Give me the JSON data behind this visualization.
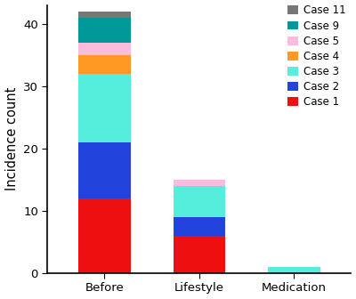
{
  "categories": [
    "Before",
    "Lifestyle",
    "Medication"
  ],
  "cases": [
    {
      "label": "Case 1",
      "color": "#EE1010",
      "values": [
        12,
        6,
        0
      ]
    },
    {
      "label": "Case 2",
      "color": "#2244DD",
      "values": [
        9,
        3,
        0
      ]
    },
    {
      "label": "Case 3",
      "color": "#55EEDD",
      "values": [
        11,
        5,
        1
      ]
    },
    {
      "label": "Case 4",
      "color": "#FF9922",
      "values": [
        3,
        0,
        0
      ]
    },
    {
      "label": "Case 5",
      "color": "#FFBBDD",
      "values": [
        2,
        1,
        0
      ]
    },
    {
      "label": "Case 9",
      "color": "#009999",
      "values": [
        4,
        0,
        0
      ]
    },
    {
      "label": "Case 11",
      "color": "#777777",
      "values": [
        1,
        0,
        0
      ]
    }
  ],
  "ylabel": "Incidence count",
  "ylim": [
    0,
    43
  ],
  "yticks": [
    0,
    10,
    20,
    30,
    40
  ],
  "bar_width": 0.55,
  "background_color": "#ffffff",
  "legend_fontsize": 8.5,
  "ylabel_fontsize": 10.5,
  "tick_fontsize": 9.5
}
